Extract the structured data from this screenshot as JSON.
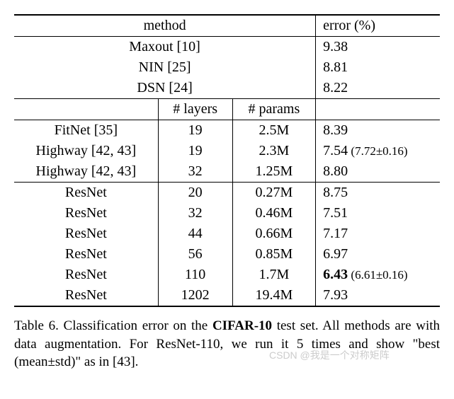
{
  "headers": {
    "method": "method",
    "error": "error (%)",
    "layers": "# layers",
    "params": "# params"
  },
  "group1": [
    {
      "name": "Maxout [10]",
      "error": "9.38"
    },
    {
      "name": "NIN [25]",
      "error": "8.81"
    },
    {
      "name": "DSN [24]",
      "error": "8.22"
    }
  ],
  "group2": [
    {
      "name": "FitNet [35]",
      "layers": "19",
      "params": "2.5M",
      "error": "8.39",
      "note": ""
    },
    {
      "name": "Highway [42, 43]",
      "layers": "19",
      "params": "2.3M",
      "error": "7.54",
      "note": "(7.72±0.16)"
    },
    {
      "name": "Highway [42, 43]",
      "layers": "32",
      "params": "1.25M",
      "error": "8.80",
      "note": ""
    }
  ],
  "group3": [
    {
      "name": "ResNet",
      "layers": "20",
      "params": "0.27M",
      "error": "8.75",
      "note": "",
      "bold": false
    },
    {
      "name": "ResNet",
      "layers": "32",
      "params": "0.46M",
      "error": "7.51",
      "note": "",
      "bold": false
    },
    {
      "name": "ResNet",
      "layers": "44",
      "params": "0.66M",
      "error": "7.17",
      "note": "",
      "bold": false
    },
    {
      "name": "ResNet",
      "layers": "56",
      "params": "0.85M",
      "error": "6.97",
      "note": "",
      "bold": false
    },
    {
      "name": "ResNet",
      "layers": "110",
      "params": "1.7M",
      "error": "6.43",
      "note": "(6.61±0.16)",
      "bold": true
    },
    {
      "name": "ResNet",
      "layers": "1202",
      "params": "19.4M",
      "error": "7.93",
      "note": "",
      "bold": false
    }
  ],
  "caption": {
    "prefix": "Table 6. Classification error on the ",
    "dataset": "CIFAR-10",
    "suffix": " test set. All methods are with data augmentation. For ResNet-110, we run it 5 times and show \"best (mean±std)\" as in [43]."
  },
  "watermark": "CSDN @我是一个对称矩阵"
}
